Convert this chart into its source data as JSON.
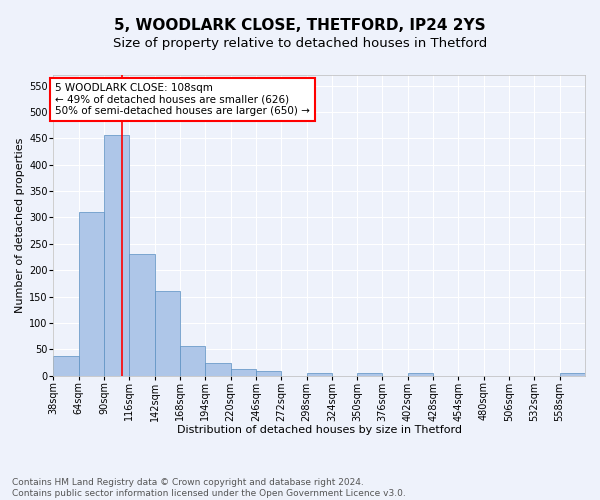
{
  "title": "5, WOODLARK CLOSE, THETFORD, IP24 2YS",
  "subtitle": "Size of property relative to detached houses in Thetford",
  "xlabel": "Distribution of detached houses by size in Thetford",
  "ylabel": "Number of detached properties",
  "footnote1": "Contains HM Land Registry data © Crown copyright and database right 2024.",
  "footnote2": "Contains public sector information licensed under the Open Government Licence v3.0.",
  "bin_labels": [
    "38sqm",
    "64sqm",
    "90sqm",
    "116sqm",
    "142sqm",
    "168sqm",
    "194sqm",
    "220sqm",
    "246sqm",
    "272sqm",
    "298sqm",
    "324sqm",
    "350sqm",
    "376sqm",
    "402sqm",
    "428sqm",
    "454sqm",
    "480sqm",
    "506sqm",
    "532sqm",
    "558sqm"
  ],
  "bar_values": [
    38,
    311,
    456,
    230,
    160,
    57,
    25,
    12,
    9,
    0,
    5,
    0,
    5,
    0,
    5,
    0,
    0,
    0,
    0,
    0,
    5
  ],
  "bar_color": "#aec6e8",
  "bar_edge_color": "#5a8fc2",
  "vline_color": "red",
  "vline_x_sqm": 108,
  "annotation_text": "5 WOODLARK CLOSE: 108sqm\n← 49% of detached houses are smaller (626)\n50% of semi-detached houses are larger (650) →",
  "annotation_box_color": "white",
  "annotation_box_edge_color": "red",
  "ylim": [
    0,
    570
  ],
  "yticks": [
    0,
    50,
    100,
    150,
    200,
    250,
    300,
    350,
    400,
    450,
    500,
    550
  ],
  "bg_color": "#eef2fb",
  "plot_bg_color": "#eef2fb",
  "grid_color": "white",
  "title_fontsize": 11,
  "subtitle_fontsize": 9.5,
  "axis_label_fontsize": 8,
  "tick_fontsize": 7,
  "annotation_fontsize": 7.5,
  "footnote_fontsize": 6.5
}
